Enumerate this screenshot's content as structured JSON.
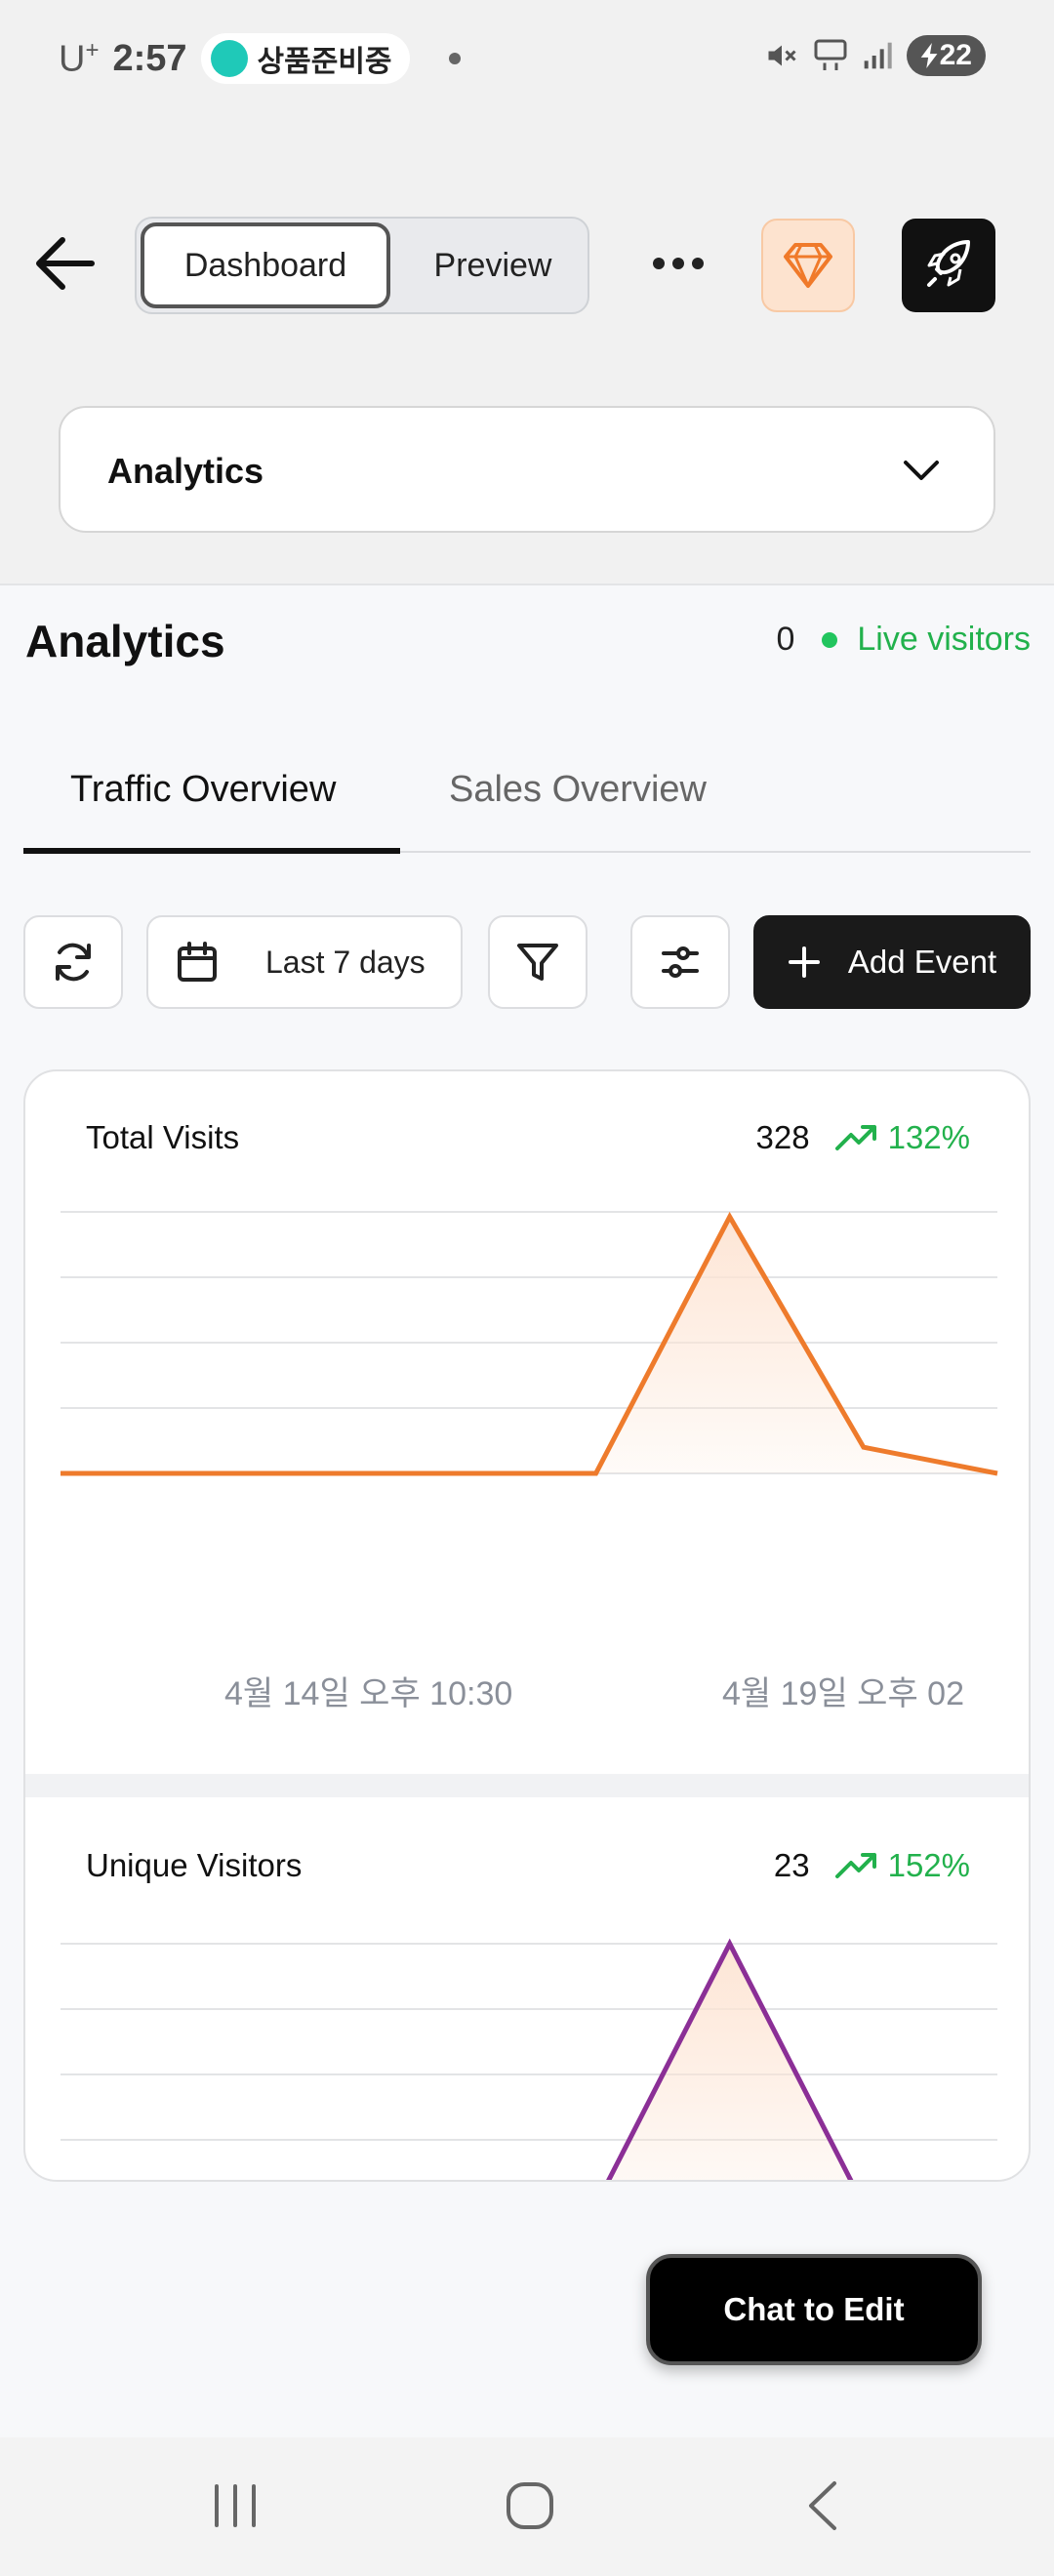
{
  "status_bar": {
    "carrier": "U",
    "carrier_sup": "+",
    "time": "2:57",
    "notification_text": "상품준비중",
    "battery": "22"
  },
  "toolbar": {
    "dashboard_label": "Dashboard",
    "preview_label": "Preview",
    "gem_color": "#f07a2a"
  },
  "page_selector": {
    "value": "Analytics"
  },
  "main": {
    "title": "Analytics",
    "live_count": "0",
    "live_label": "Live visitors",
    "tabs": [
      {
        "label": "Traffic Overview",
        "active": true
      },
      {
        "label": "Sales Overview",
        "active": false
      }
    ],
    "filters": {
      "date_range": "Last 7 days",
      "add_event": "Add Event"
    }
  },
  "metrics": [
    {
      "label": "Total Visits",
      "value": "328",
      "trend": "132%",
      "line_color": "#ee7b2c",
      "fill_color": "#fde4d3"
    },
    {
      "label": "Unique Visitors",
      "value": "23",
      "trend": "152%",
      "line_color": "#8b2f96",
      "fill_color": "#fde4d3"
    }
  ],
  "chart_data": [
    {
      "type": "area",
      "title": "Total Visits",
      "x_ticks": [
        "4월 14일 오후 10:30",
        "4월 19일 오후 02"
      ],
      "x": [
        0,
        1,
        2,
        3,
        4,
        5,
        6,
        7
      ],
      "values": [
        0,
        0,
        0,
        0,
        0,
        157,
        16,
        0
      ],
      "ylim": [
        0,
        160
      ],
      "grid": true
    },
    {
      "type": "area",
      "title": "Unique Visitors",
      "x": [
        0,
        1,
        2,
        3,
        4,
        5,
        6,
        7
      ],
      "values": [
        0,
        0,
        0,
        0,
        0,
        12,
        0,
        0
      ],
      "ylim": [
        0,
        12
      ],
      "grid": true
    }
  ],
  "chat_button": "Chat to Edit",
  "accent_green": "#22b14c"
}
